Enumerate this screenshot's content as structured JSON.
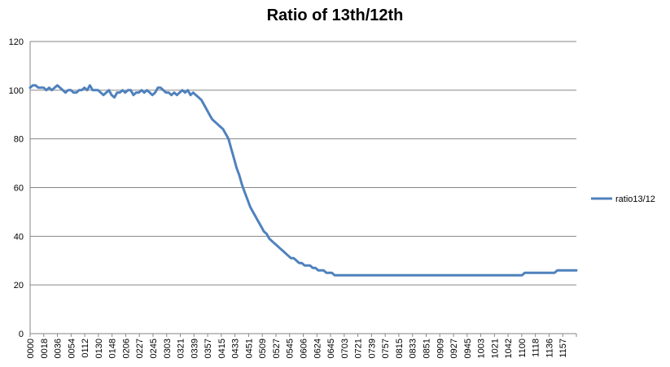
{
  "chart_data": {
    "type": "line",
    "title": "Ratio of 13th/12th",
    "xlabel": "",
    "ylabel": "",
    "ylim": [
      0,
      120
    ],
    "yticks": [
      0,
      20,
      40,
      60,
      80,
      100,
      120
    ],
    "grid": true,
    "legend_position": "right",
    "line_color": "#4f81bd",
    "x_tick_labels": [
      "0000",
      "0018",
      "0036",
      "0054",
      "0112",
      "0130",
      "0148",
      "0206",
      "0227",
      "0245",
      "0303",
      "0321",
      "0339",
      "0357",
      "0415",
      "0433",
      "0451",
      "0509",
      "0527",
      "0545",
      "0606",
      "0624",
      "0645",
      "0703",
      "0721",
      "0739",
      "0757",
      "0815",
      "0833",
      "0851",
      "0909",
      "0927",
      "0945",
      "1003",
      "1021",
      "1042",
      "1100",
      "1118",
      "1136",
      "1157"
    ],
    "series": [
      {
        "name": "ratio13/12",
        "values": [
          101,
          102,
          102,
          101,
          101,
          101,
          100,
          101,
          100,
          101,
          102,
          101,
          100,
          99,
          100,
          100,
          99,
          99,
          100,
          100,
          101,
          100,
          102,
          100,
          100,
          100,
          99,
          98,
          99,
          100,
          98,
          97,
          99,
          99,
          100,
          99,
          100,
          100,
          98,
          99,
          99,
          100,
          99,
          100,
          99,
          98,
          99,
          101,
          101,
          100,
          99,
          99,
          98,
          99,
          98,
          99,
          100,
          99,
          100,
          98,
          99,
          98,
          97,
          96,
          94,
          92,
          90,
          88,
          87,
          86,
          85,
          84,
          82,
          80,
          76,
          72,
          68,
          65,
          61,
          58,
          55,
          52,
          50,
          48,
          46,
          44,
          42,
          41,
          39,
          38,
          37,
          36,
          35,
          34,
          33,
          32,
          31,
          31,
          30,
          29,
          29,
          28,
          28,
          28,
          27,
          27,
          26,
          26,
          26,
          25,
          25,
          25,
          24,
          24,
          24,
          24,
          24,
          24,
          24,
          24,
          24,
          24,
          24,
          24,
          24,
          24,
          24,
          24,
          24,
          24,
          24,
          24,
          24,
          24,
          24,
          24,
          24,
          24,
          24,
          24,
          24,
          24,
          24,
          24,
          24,
          24,
          24,
          24,
          24,
          24,
          24,
          24,
          24,
          24,
          24,
          24,
          24,
          24,
          24,
          24,
          24,
          24,
          24,
          24,
          24,
          24,
          24,
          24,
          24,
          24,
          24,
          24,
          24,
          24,
          24,
          24,
          24,
          24,
          24,
          24,
          24,
          24,
          25,
          25,
          25,
          25,
          25,
          25,
          25,
          25,
          25,
          25,
          25,
          25,
          26,
          26,
          26,
          26,
          26,
          26,
          26,
          26
        ]
      }
    ]
  }
}
